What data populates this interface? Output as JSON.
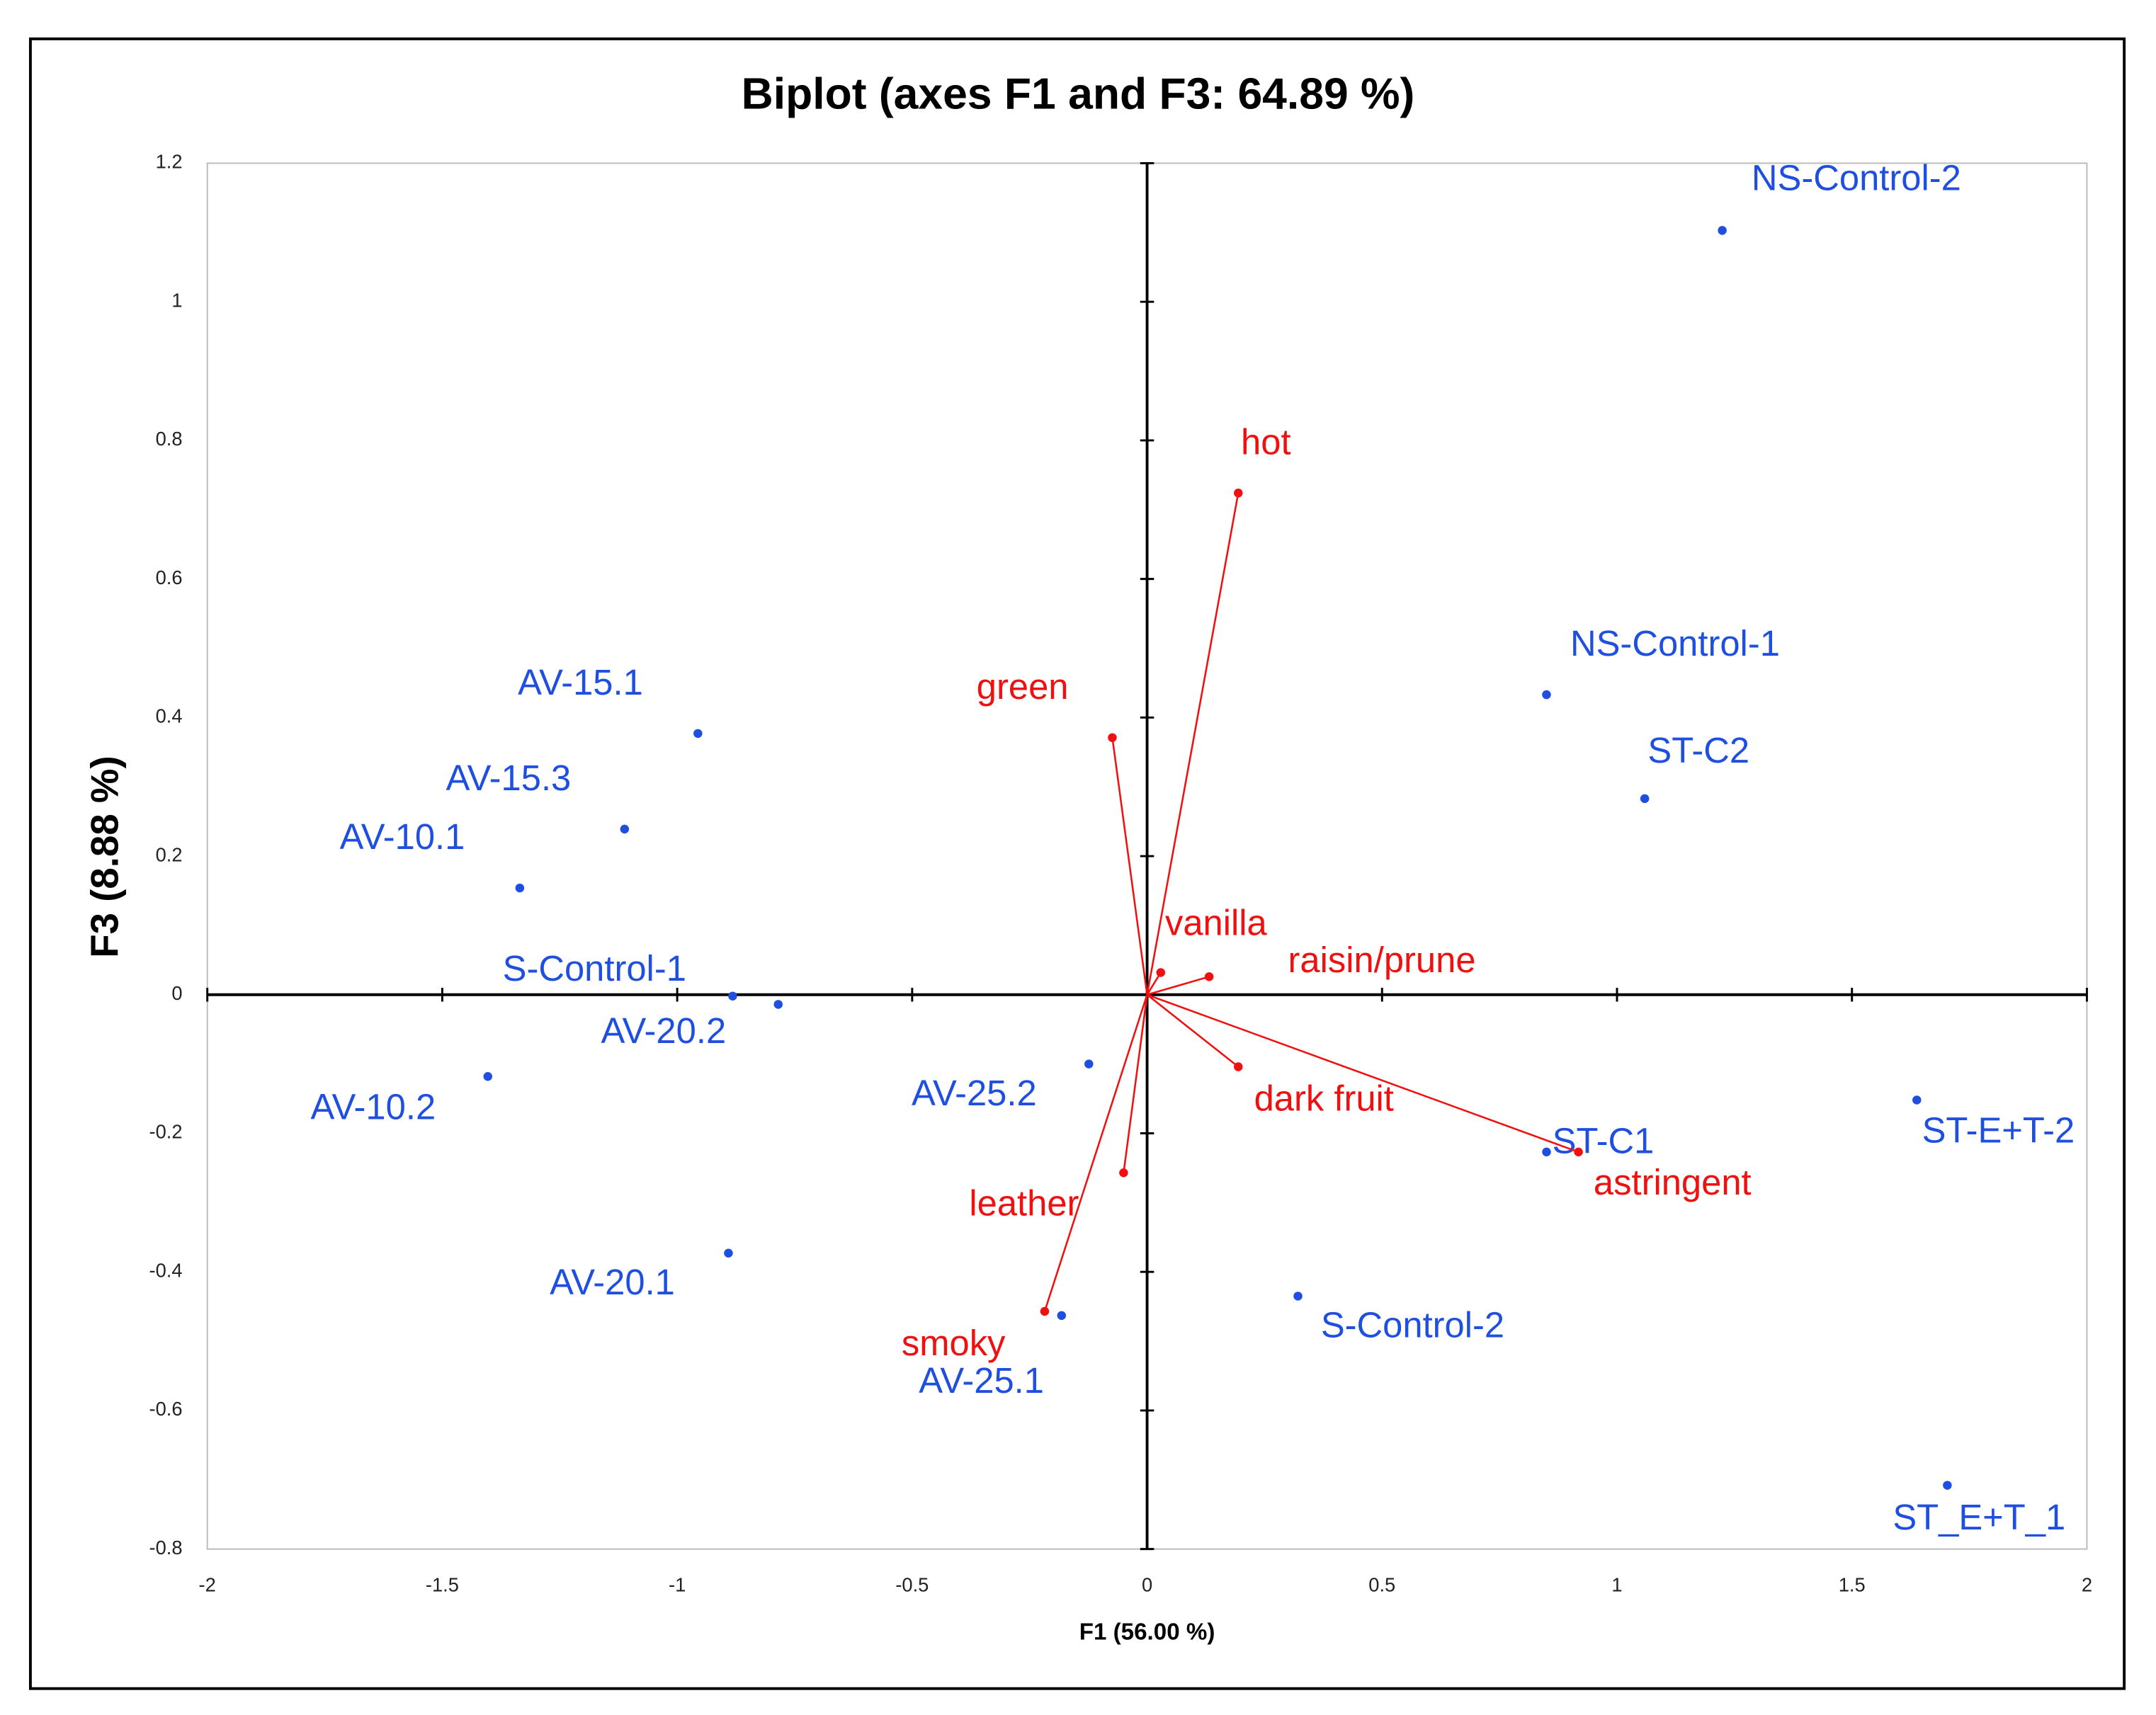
{
  "chart_data": {
    "type": "scatter",
    "title": "Biplot (axes F1 and F3: 64.89 %)",
    "x_label": "F1 (56.00 %)",
    "y_label": "F3 (8.88 %)",
    "xlim": [
      -2,
      2
    ],
    "ylim": [
      -0.8,
      1.2
    ],
    "xticks": [
      -2,
      -1.5,
      -1,
      -0.5,
      0,
      0.5,
      1,
      1.5,
      2
    ],
    "yticks": [
      -0.8,
      -0.6,
      -0.4,
      -0.2,
      0,
      0.2,
      0.4,
      0.6,
      0.8,
      1,
      1.2
    ],
    "grid": false,
    "series": [
      {
        "color": "#1f4fe0",
        "arrows": false,
        "labels": [
          "NS-Control-2",
          "NS-Control-1",
          "ST-C2",
          "AV-15.1",
          "AV-15.3",
          "AV-10.1",
          "S-Control-1",
          "AV-20.2",
          "AV-10.2",
          "AV-25.2",
          "AV-20.1",
          "AV-25.1",
          "S-Control-2",
          "ST-C1",
          "ST-E+T-2",
          "ST_E+T_1"
        ],
        "x": [
          1.224,
          0.85,
          1.059,
          -0.956,
          -1.112,
          -1.335,
          -0.882,
          -0.785,
          -1.403,
          -0.124,
          -0.891,
          -0.182,
          0.321,
          0.85,
          1.638,
          1.703
        ],
        "values": [
          1.103,
          0.433,
          0.283,
          0.377,
          0.239,
          0.154,
          -0.002,
          -0.014,
          -0.118,
          -0.1,
          -0.373,
          -0.463,
          -0.435,
          -0.227,
          -0.152,
          -0.708
        ]
      },
      {
        "color": "#f01010",
        "arrows": true,
        "labels": [
          "hot",
          "green",
          "vanilla",
          "raisin/prune",
          "dark fruit",
          "astringent",
          "leather",
          "smoky"
        ],
        "x": [
          0.194,
          -0.074,
          0.029,
          0.132,
          0.194,
          0.918,
          -0.05,
          -0.218
        ],
        "values": [
          0.724,
          0.371,
          0.032,
          0.026,
          -0.104,
          -0.227,
          -0.257,
          -0.457
        ]
      }
    ]
  }
}
